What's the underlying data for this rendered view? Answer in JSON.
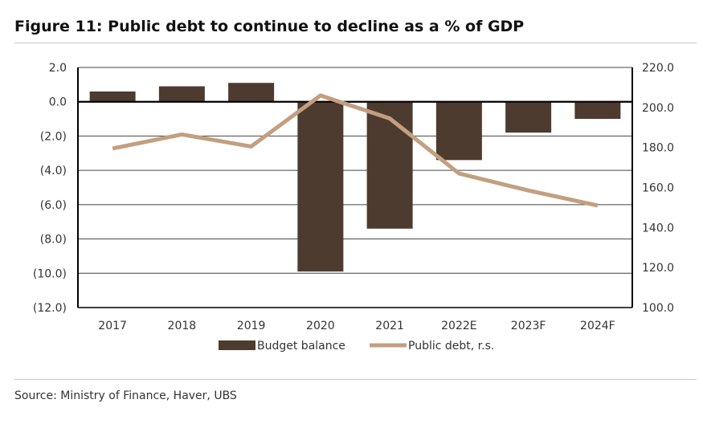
{
  "title": "Figure 11: Public debt to continue to decline as a % of GDP",
  "source": "Source: Ministry of Finance, Haver, UBS",
  "chart_data": {
    "type": "bar+line",
    "title": "Figure 11: Public debt to continue to decline as a % of GDP",
    "categories": [
      "2017",
      "2018",
      "2019",
      "2020",
      "2021",
      "2022E",
      "2023F",
      "2024F"
    ],
    "series": [
      {
        "name": "Budget balance",
        "type": "bar",
        "axis": "left",
        "color": "#4e3b2f",
        "values": [
          0.6,
          0.9,
          1.1,
          -9.9,
          -7.4,
          -3.4,
          -1.8,
          -1.0
        ]
      },
      {
        "name": "Public debt, r.s.",
        "type": "line",
        "axis": "right",
        "color": "#c29f80",
        "values": [
          179.5,
          186.5,
          180.5,
          206.0,
          194.5,
          167.0,
          158.5,
          151.0
        ]
      }
    ],
    "left_axis": {
      "ylim": [
        -12,
        2
      ],
      "ticks": [
        "2.0",
        "0.0",
        "(2.0)",
        "(4.0)",
        "(6.0)",
        "(8.0)",
        "(10.0)",
        "(12.0)"
      ]
    },
    "right_axis": {
      "ylim": [
        100,
        220
      ],
      "ticks": [
        "220.0",
        "200.0",
        "180.0",
        "160.0",
        "140.0",
        "120.0",
        "100.0"
      ]
    },
    "grid": true,
    "legend_position": "bottom"
  }
}
